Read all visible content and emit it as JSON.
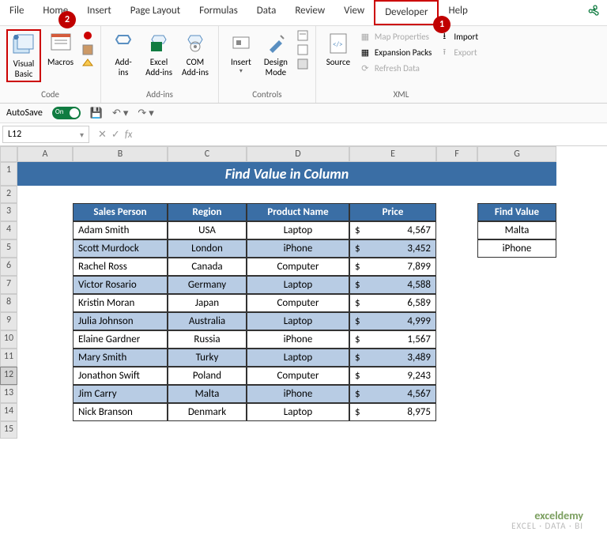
{
  "menu": [
    "File",
    "Home",
    "Insert",
    "Page Layout",
    "Formulas",
    "Data",
    "Review",
    "View",
    "Developer",
    "Help"
  ],
  "highlighted_tab": "Developer",
  "callouts": {
    "1": "1",
    "2": "2"
  },
  "ribbon": {
    "code": {
      "visual_basic": "Visual\nBasic",
      "macros": "Macros",
      "label": "Code"
    },
    "addins": {
      "addins": "Add-\nins",
      "excel_addins": "Excel\nAdd-ins",
      "com_addins": "COM\nAdd-ins",
      "label": "Add-ins"
    },
    "controls": {
      "insert": "Insert",
      "design": "Design\nMode",
      "label": "Controls"
    },
    "xml": {
      "source": "Source",
      "map_props": "Map Properties",
      "expansion": "Expansion Packs",
      "refresh": "Refresh Data",
      "import": "Import",
      "export": "Export",
      "label": "XML"
    }
  },
  "qat": {
    "autosave": "AutoSave",
    "toggle": "On"
  },
  "namebox": "L12",
  "columns": [
    "A",
    "B",
    "C",
    "D",
    "E",
    "F",
    "G"
  ],
  "title": "Find Value in Column",
  "table": {
    "headers": [
      "Sales Person",
      "Region",
      "Product Name",
      "Price"
    ],
    "rows": [
      {
        "person": "Adam Smith",
        "region": "USA",
        "product": "Laptop",
        "price": "4,567",
        "alt": false
      },
      {
        "person": "Scott Murdock",
        "region": "London",
        "product": "iPhone",
        "price": "3,452",
        "alt": true
      },
      {
        "person": "Rachel Ross",
        "region": "Canada",
        "product": "Computer",
        "price": "7,899",
        "alt": false
      },
      {
        "person": "Victor Rosario",
        "region": "Germany",
        "product": "Laptop",
        "price": "4,588",
        "alt": true
      },
      {
        "person": "Kristin Moran",
        "region": "Japan",
        "product": "Computer",
        "price": "6,589",
        "alt": false
      },
      {
        "person": "Julia Johnson",
        "region": "Australia",
        "product": "Laptop",
        "price": "4,999",
        "alt": true
      },
      {
        "person": "Elaine Gardner",
        "region": "Russia",
        "product": "iPhone",
        "price": "1,567",
        "alt": false
      },
      {
        "person": "Mary Smith",
        "region": "Turky",
        "product": "Laptop",
        "price": "3,489",
        "alt": true
      },
      {
        "person": "Jonathon Swift",
        "region": "Poland",
        "product": "Computer",
        "price": "9,243",
        "alt": false
      },
      {
        "person": "Jim Carry",
        "region": "Malta",
        "product": "iPhone",
        "price": "4,567",
        "alt": true
      },
      {
        "person": "Nick Branson",
        "region": "Denmark",
        "product": "Laptop",
        "price": "8,975",
        "alt": false
      }
    ]
  },
  "find_value": {
    "header": "Find Value",
    "rows": [
      "Malta",
      "iPhone"
    ]
  },
  "watermark": {
    "brand": "exceldemy",
    "tag": "EXCEL · DATA · BI"
  },
  "colors": {
    "accent": "#3a6ea5",
    "alt_row": "#b8cce4",
    "callout": "#c00000",
    "highlight_border": "#cc0000"
  }
}
